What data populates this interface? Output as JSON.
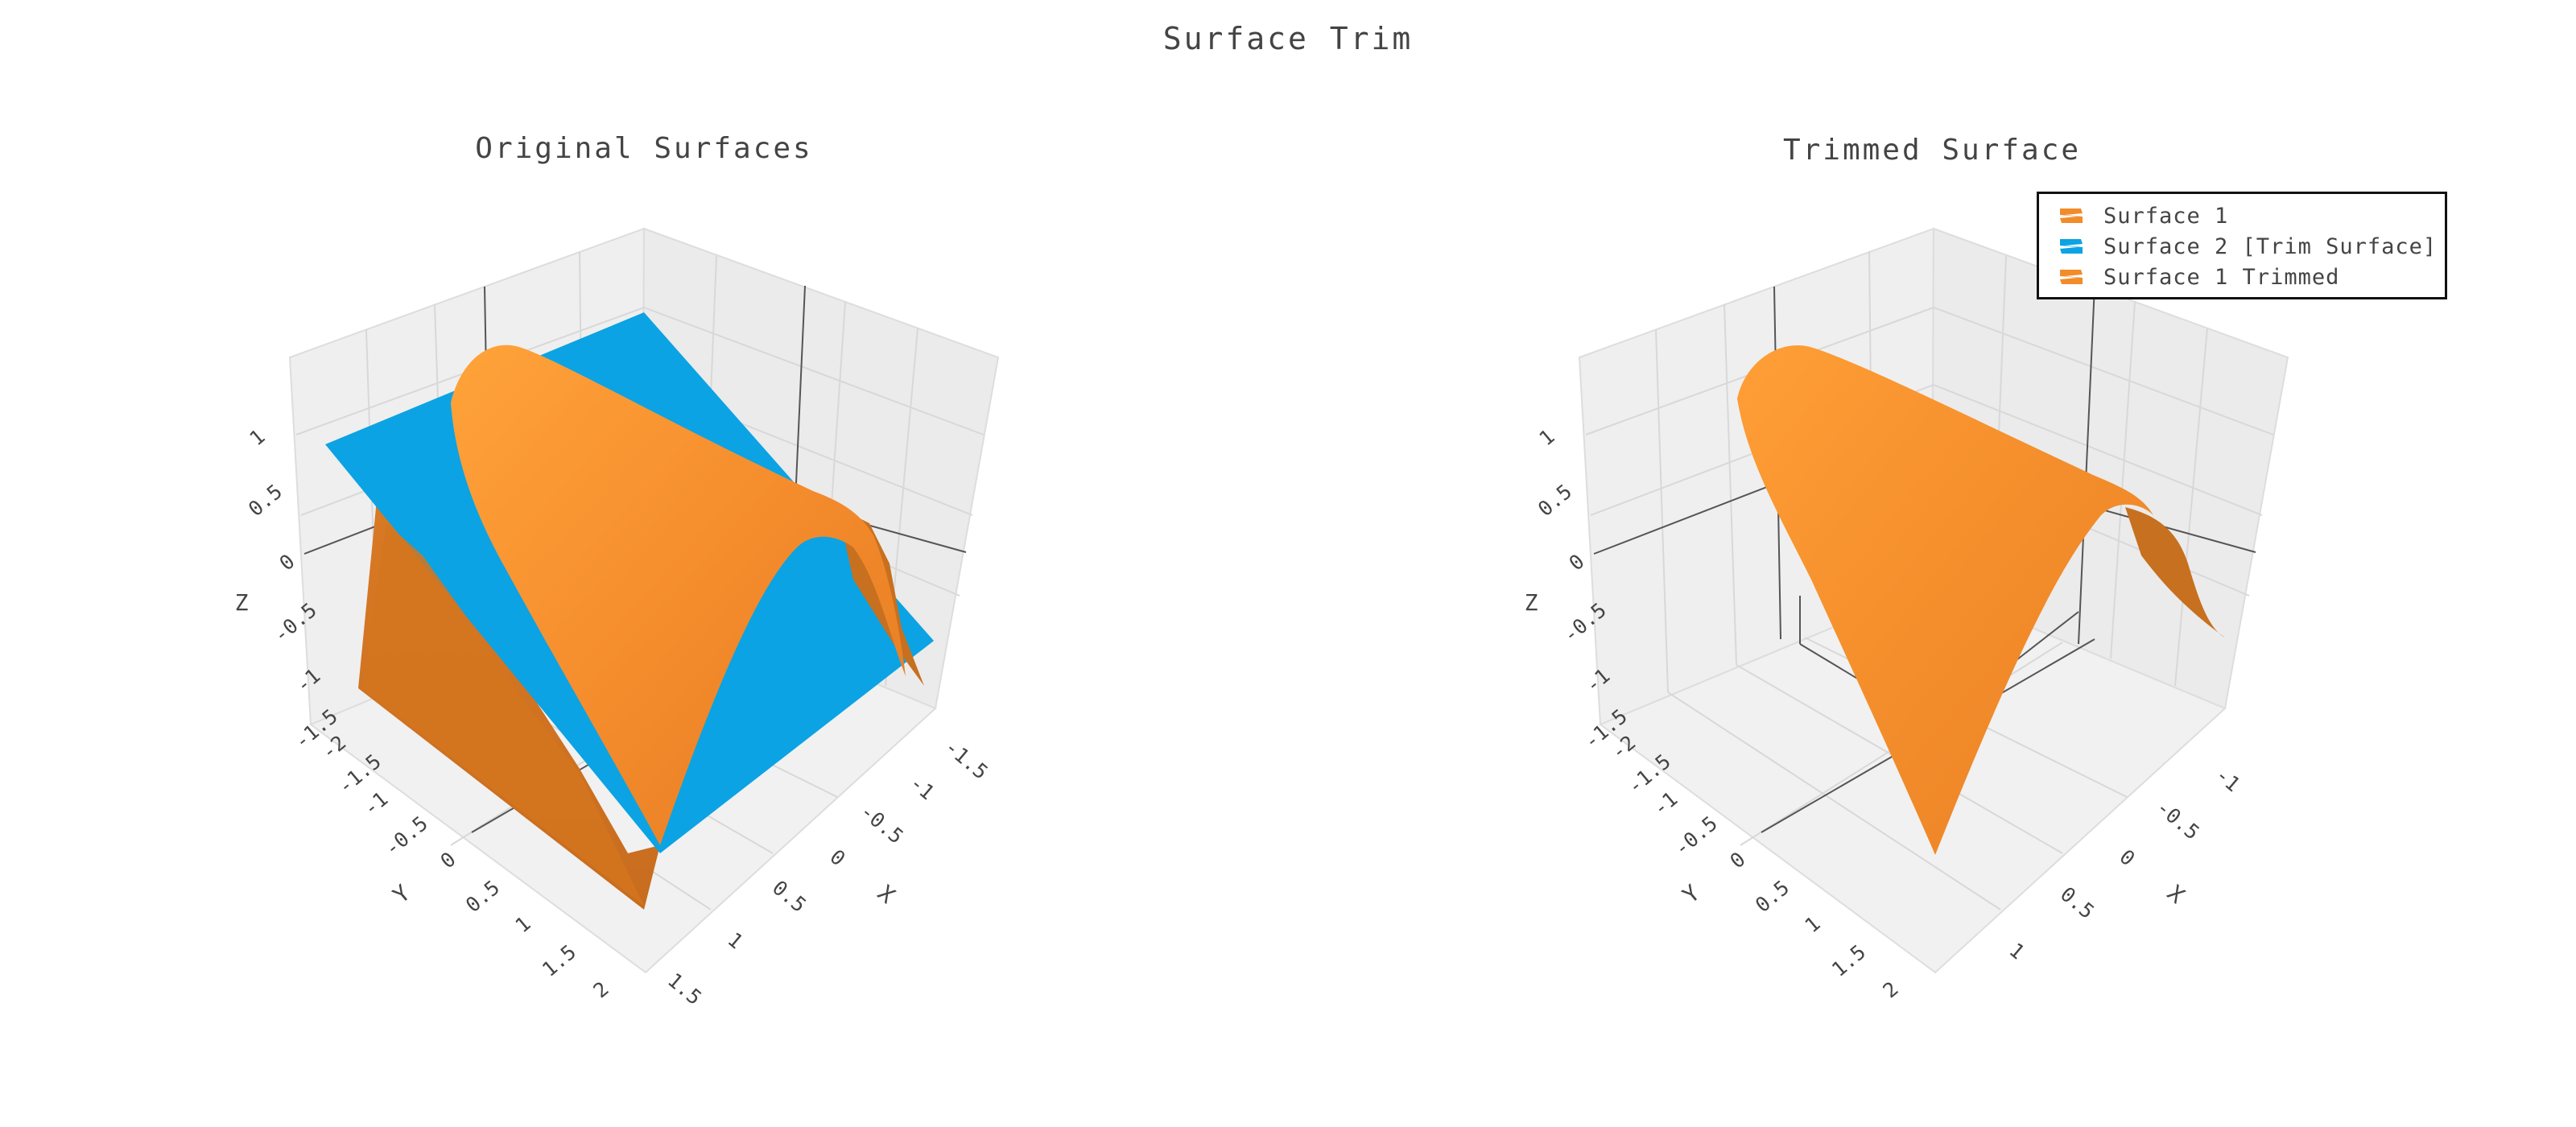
{
  "title": "Surface Trim",
  "legend": {
    "items": [
      {
        "label": "Surface 1",
        "color": "#f28b2a"
      },
      {
        "label": "Surface 2 [Trim Surface]",
        "color": "#0ba3e3"
      },
      {
        "label": "Surface 1 Trimmed",
        "color": "#f28b2a"
      }
    ]
  },
  "chart_data": [
    {
      "type": "surface3d",
      "title": "Original Surfaces",
      "xlabel": "X",
      "ylabel": "Y",
      "zlabel": "Z",
      "x_ticks": [
        "-1.5",
        "-1",
        "-0.5",
        "0",
        "0.5",
        "1",
        "1.5"
      ],
      "y_ticks": [
        "-2",
        "-1.5",
        "-1",
        "-0.5",
        "0",
        "0.5",
        "1",
        "1.5",
        "2"
      ],
      "z_ticks": [
        "1",
        "0.5",
        "0",
        "-0.5",
        "-1",
        "-1.5"
      ],
      "xlim": [
        -1.5,
        1.5
      ],
      "ylim": [
        -2,
        2
      ],
      "zlim": [
        -1.5,
        1.2
      ],
      "series": [
        {
          "name": "Surface 1",
          "color": "#f28b2a",
          "surface": "paraboloid ridge"
        },
        {
          "name": "Surface 2 [Trim Surface]",
          "color": "#0ba3e3",
          "surface": "inclined plane"
        }
      ]
    },
    {
      "type": "surface3d",
      "title": "Trimmed Surface",
      "xlabel": "X",
      "ylabel": "Y",
      "zlabel": "Z",
      "x_ticks": [
        "-1",
        "-0.5",
        "0",
        "0.5",
        "1"
      ],
      "y_ticks": [
        "-2",
        "-1.5",
        "-1",
        "-0.5",
        "0",
        "0.5",
        "1",
        "1.5",
        "2"
      ],
      "z_ticks": [
        "1",
        "0.5",
        "0",
        "-0.5",
        "-1",
        "-1.5"
      ],
      "xlim": [
        -1,
        1
      ],
      "ylim": [
        -2,
        2
      ],
      "zlim": [
        -1.5,
        1.2
      ],
      "series": [
        {
          "name": "Surface 1 Trimmed",
          "color": "#f28b2a",
          "surface": "trimmed paraboloid ridge"
        }
      ]
    }
  ]
}
